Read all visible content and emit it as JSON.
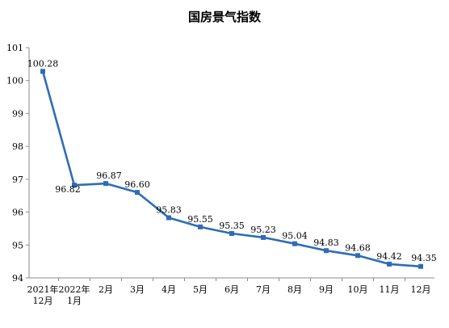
{
  "chart_data": {
    "type": "line",
    "title": "国房景气指数",
    "categories": [
      [
        "2021年",
        "12月"
      ],
      [
        "2022年",
        "1月"
      ],
      [
        "2月"
      ],
      [
        "3月"
      ],
      [
        "4月"
      ],
      [
        "5月"
      ],
      [
        "6月"
      ],
      [
        "7月"
      ],
      [
        "8月"
      ],
      [
        "9月"
      ],
      [
        "10月"
      ],
      [
        "11月"
      ],
      [
        "12月"
      ]
    ],
    "values": [
      100.28,
      96.82,
      96.87,
      96.6,
      95.83,
      95.55,
      95.35,
      95.23,
      95.04,
      94.83,
      94.68,
      94.42,
      94.35
    ],
    "value_labels": [
      "100.28",
      "96.82",
      "96.87",
      "96.60",
      "95.83",
      "95.55",
      "95.35",
      "95.23",
      "95.04",
      "94.83",
      "94.68",
      "94.42",
      "94.35"
    ],
    "y_ticks": [
      94,
      95,
      96,
      97,
      98,
      99,
      100,
      101
    ],
    "ylim": [
      94,
      101
    ],
    "grid": false,
    "line_color": "#2e6db5",
    "axis_color": "#8c8c8c"
  }
}
